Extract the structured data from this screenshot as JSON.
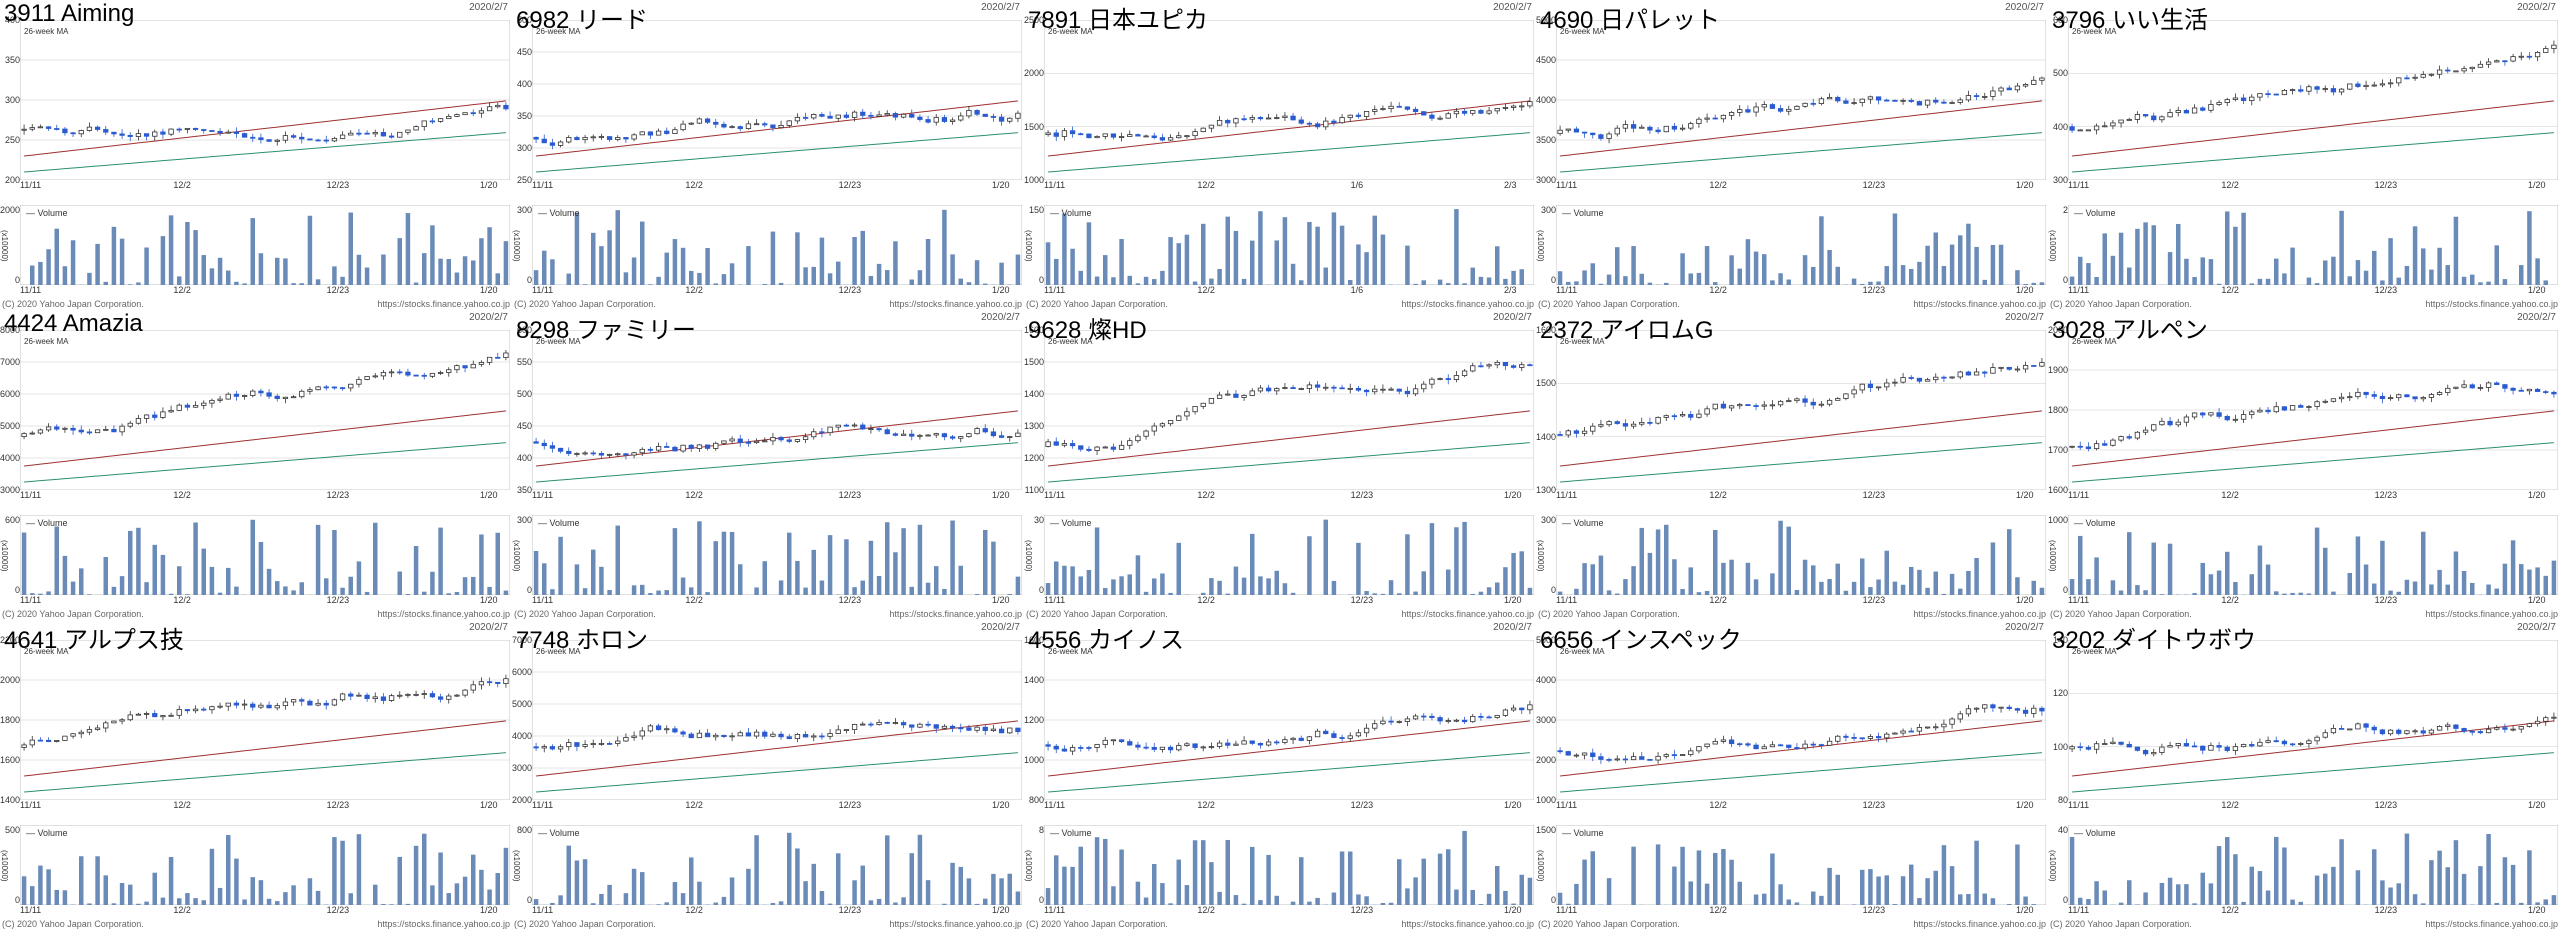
{
  "grid": {
    "rows": 3,
    "cols": 5
  },
  "legend_label": "26-week MA",
  "volume_label": "Volume",
  "copyright": "(C) 2020 Yahoo Japan Corporation.",
  "source_url": "https://stocks.finance.yahoo.co.jp",
  "x_labels": [
    "11/11",
    "12/2",
    "12/23",
    "1/20"
  ],
  "colors": {
    "candle_up_fill": "#ffffff",
    "candle_up_stroke": "#333333",
    "candle_down_fill": "#2b5bcf",
    "candle_down_stroke": "#2b5bcf",
    "ma1": "#a03030",
    "ma2": "#2a9070",
    "grid": "#cccccc",
    "axis": "#888888",
    "volume_bar": "#6a8bb8",
    "background": "#ffffff",
    "text": "#333333"
  },
  "charts": [
    {
      "code": "3911",
      "name": "Aiming",
      "date": "2020/2/7",
      "ylim": [
        200,
        400
      ],
      "ystep": 50,
      "vlim": 2000,
      "x_labels": null
    },
    {
      "code": "6982",
      "name": "リード",
      "date": "2020/2/7",
      "ylim": [
        250,
        500
      ],
      "ystep": 50,
      "vlim": 300,
      "x_labels": null
    },
    {
      "code": "7891",
      "name": "日本ユピカ",
      "date": "2020/2/7",
      "ylim": [
        1000,
        2500
      ],
      "ystep": 500,
      "vlim": 150,
      "x_labels": [
        "11/11",
        "12/2",
        "1/6",
        "2/3"
      ]
    },
    {
      "code": "4690",
      "name": "日パレット",
      "date": "2020/2/7",
      "ylim": [
        3000,
        5000
      ],
      "ystep": 500,
      "vlim": 300,
      "x_labels": null
    },
    {
      "code": "3796",
      "name": "いい生活",
      "date": "2020/2/7",
      "ylim": [
        300,
        600
      ],
      "ystep": 100,
      "vlim": 2,
      "x_labels": null
    },
    {
      "code": "4424",
      "name": "Amazia",
      "date": "2020/2/7",
      "ylim": [
        3000,
        8000
      ],
      "ystep": 1000,
      "vlim": 600,
      "x_labels": null
    },
    {
      "code": "8298",
      "name": "ファミリー",
      "date": "2020/2/7",
      "ylim": [
        350,
        600
      ],
      "ystep": 50,
      "vlim": 300,
      "x_labels": null
    },
    {
      "code": "9628",
      "name": "燦HD",
      "date": "2020/2/7",
      "ylim": [
        1100,
        1600
      ],
      "ystep": 100,
      "vlim": 30,
      "x_labels": null
    },
    {
      "code": "2372",
      "name": "アイロムG",
      "date": "2020/2/7",
      "ylim": [
        1300,
        1600
      ],
      "ystep": 100,
      "vlim": 300,
      "x_labels": null
    },
    {
      "code": "3028",
      "name": "アルペン",
      "date": "2020/2/7",
      "ylim": [
        1600,
        2000
      ],
      "ystep": 100,
      "vlim": 1000,
      "x_labels": null
    },
    {
      "code": "4641",
      "name": "アルプス技",
      "date": "2020/2/7",
      "ylim": [
        1400,
        2200
      ],
      "ystep": 200,
      "vlim": 500,
      "x_labels": null
    },
    {
      "code": "7748",
      "name": "ホロン",
      "date": "2020/2/7",
      "ylim": [
        2000,
        7000
      ],
      "ystep": 1000,
      "vlim": 800,
      "x_labels": null
    },
    {
      "code": "4556",
      "name": "カイノス",
      "date": "2020/2/7",
      "ylim": [
        800,
        1600
      ],
      "ystep": 200,
      "vlim": 8,
      "x_labels": null
    },
    {
      "code": "6656",
      "name": "インスペック",
      "date": "2020/2/7",
      "ylim": [
        1000,
        5000
      ],
      "ystep": 1000,
      "vlim": 1500,
      "x_labels": null
    },
    {
      "code": "3202",
      "name": "ダイトウボウ",
      "date": "2020/2/7",
      "ylim": [
        80,
        140
      ],
      "ystep": 20,
      "vlim": 40,
      "x_labels": null
    }
  ]
}
